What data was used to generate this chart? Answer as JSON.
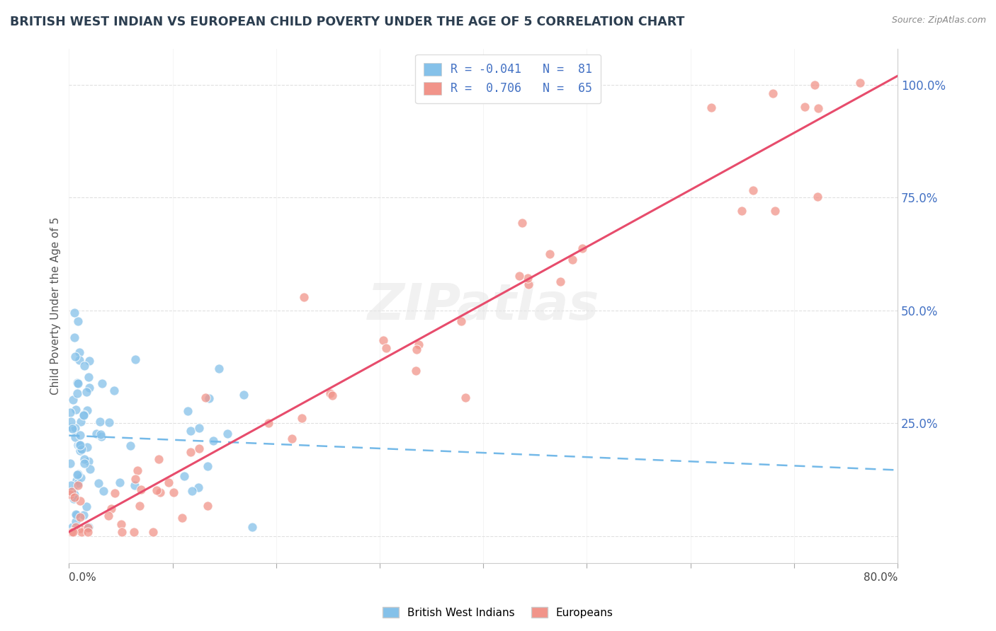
{
  "title": "BRITISH WEST INDIAN VS EUROPEAN CHILD POVERTY UNDER THE AGE OF 5 CORRELATION CHART",
  "source": "Source: ZipAtlas.com",
  "ylabel": "Child Poverty Under the Age of 5",
  "xmin": 0.0,
  "xmax": 0.8,
  "ymin": -0.06,
  "ymax": 1.08,
  "bwi_r": -0.041,
  "bwi_n": 81,
  "eur_r": 0.706,
  "eur_n": 65,
  "blue_color": "#85c1e9",
  "pink_color": "#f1948a",
  "blue_line_color": "#74b9e8",
  "pink_line_color": "#e74c6c",
  "bg_color": "#ffffff",
  "watermark_color": "#e8e8e8",
  "title_color": "#2c3e50",
  "source_color": "#888888",
  "axis_color": "#555555",
  "tick_color": "#4472c4",
  "grid_color": "#e0e0e0"
}
